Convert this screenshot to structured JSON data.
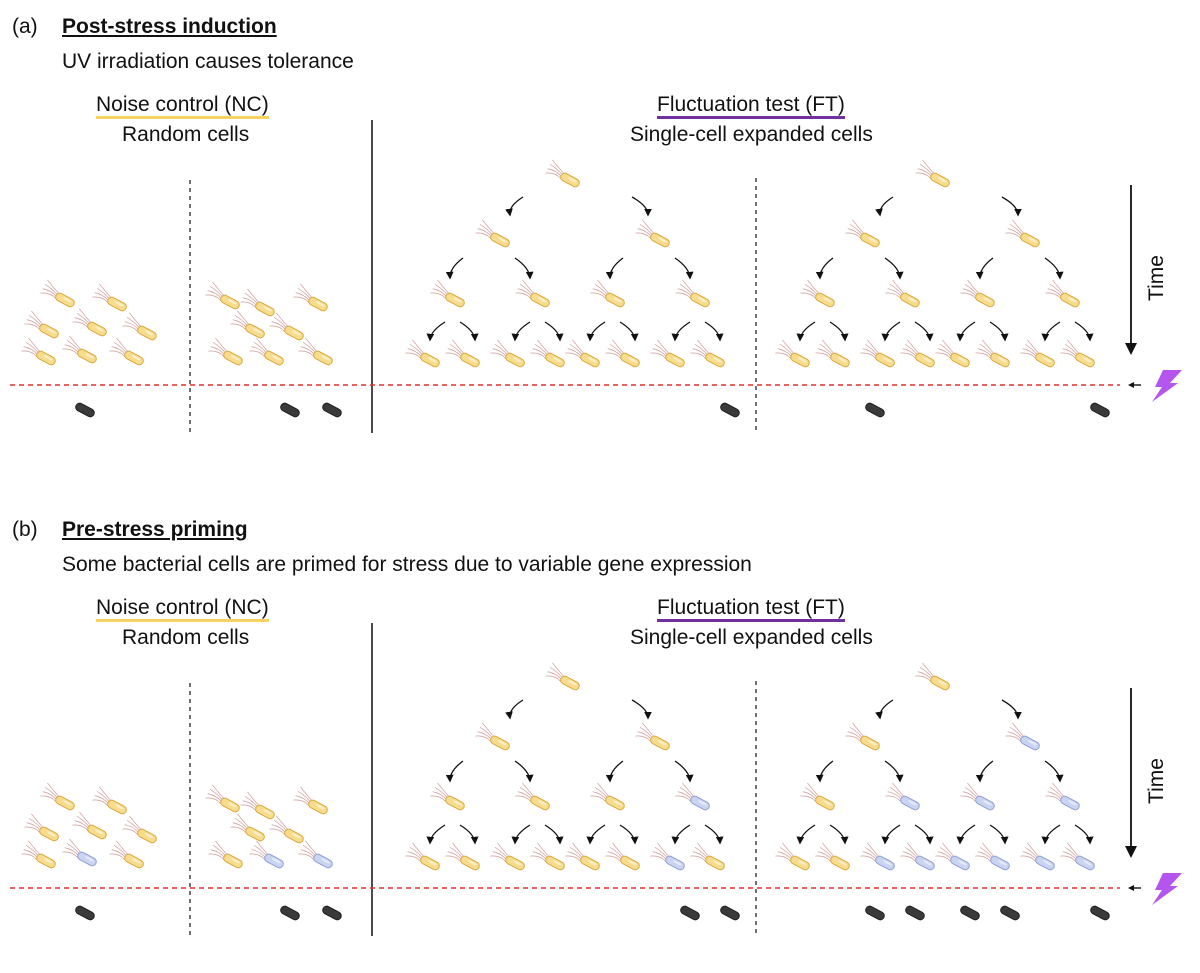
{
  "panels": [
    {
      "id": "a",
      "letter": "(a)",
      "title": "Post-stress induction",
      "subtitle": "UV irradiation causes tolerance",
      "nc_title": "Noise control (NC)",
      "nc_subtitle": "Random cells",
      "ft_title": "Fluctuation test (FT)",
      "ft_subtitle": "Single-cell expanded cells",
      "time_label": "Time",
      "ft_primed_states": [],
      "nc_primed": [],
      "survivors": {
        "nc_left": 1,
        "nc_right": 2,
        "ft_1": 0,
        "ft_2": 1,
        "ft_3": 1,
        "ft_4": 1
      }
    },
    {
      "id": "b",
      "letter": "(b)",
      "title": "Pre-stress priming",
      "subtitle": "Some bacterial cells are primed for stress due to variable gene expression",
      "nc_title": "Noise control (NC)",
      "nc_subtitle": "Random cells",
      "ft_title": "Fluctuation test (FT)",
      "ft_subtitle": "Single-cell expanded cells",
      "time_label": "Time",
      "ft_primed_states": [
        "tree1.L2.3",
        "tree1.L3.6",
        "tree2.L1.1",
        "tree2.L2.1",
        "tree2.L2.2",
        "tree2.L2.3",
        "tree2.L3.2",
        "tree2.L3.3",
        "tree2.L3.4",
        "tree2.L3.5",
        "tree2.L3.6",
        "tree2.L3.7"
      ],
      "nc_primed": [
        "left.6",
        "right.6",
        "right.7"
      ],
      "survivors": {
        "nc_left": 1,
        "nc_right": 2,
        "ft_1": 0,
        "ft_2": 2,
        "ft_3": 4,
        "ft_4": 1
      }
    }
  ],
  "colors": {
    "normal_cell": "#f7dc8e",
    "normal_cell_stroke": "#d9a93a",
    "primed_cell": "#c9d4f0",
    "primed_cell_stroke": "#8f9fd4",
    "dead_cell": "#3a3a3a",
    "nc_underline": "#f4d35e",
    "ft_underline": "#7030a0",
    "stress_line": "#e0312f",
    "lightning": "#b455f0",
    "flagella": "#d6a6a6"
  },
  "icons": {
    "stress": "lightning-bolt-icon",
    "arrow": "curved-arrow-icon"
  }
}
